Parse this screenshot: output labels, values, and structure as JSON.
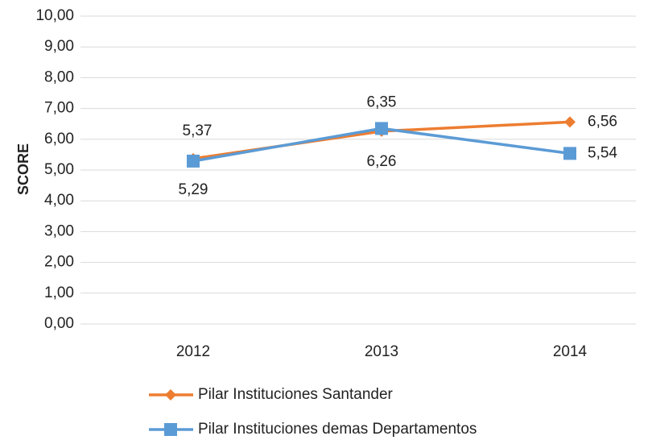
{
  "chart_data": {
    "type": "line",
    "y_label": "SCORE",
    "categories": [
      "2012",
      "2013",
      "2014"
    ],
    "series": [
      {
        "name": "Pilar Instituciones Santander",
        "color": "#ED7D31",
        "marker": "diamond",
        "values": [
          5.37,
          6.26,
          6.56
        ],
        "value_labels": [
          "5,37",
          "6,26",
          "6,56"
        ]
      },
      {
        "name": "Pilar Instituciones demas Departamentos",
        "color": "#5B9BD5",
        "marker": "square",
        "values": [
          5.29,
          6.35,
          5.54
        ],
        "value_labels": [
          "5,29",
          "6,35",
          "5,54"
        ]
      }
    ],
    "ylim": [
      0,
      10
    ],
    "yticks": [
      {
        "value": 0,
        "label": "0,00"
      },
      {
        "value": 1,
        "label": "1,00"
      },
      {
        "value": 2,
        "label": "2,00"
      },
      {
        "value": 3,
        "label": "3,00"
      },
      {
        "value": 4,
        "label": "4,00"
      },
      {
        "value": 5,
        "label": "5,00"
      },
      {
        "value": 6,
        "label": "6,00"
      },
      {
        "value": 7,
        "label": "7,00"
      },
      {
        "value": 8,
        "label": "8,00"
      },
      {
        "value": 9,
        "label": "9,00"
      },
      {
        "value": 10,
        "label": "10,00"
      }
    ],
    "grid": true
  }
}
